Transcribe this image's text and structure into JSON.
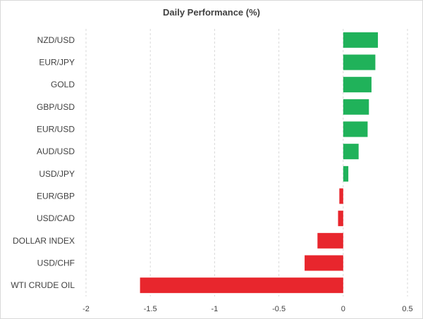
{
  "chart_data": {
    "type": "bar",
    "orientation": "horizontal",
    "title": "Daily Performance (%)",
    "xlabel": "",
    "ylabel": "",
    "xlim": [
      -2,
      0.5
    ],
    "xticks": [
      "-2",
      "-1.5",
      "-1",
      "-0.5",
      "0",
      "0.5"
    ],
    "grid": "vertical dashed",
    "positive_color": "#20b25a",
    "negative_color": "#e8262d",
    "categories": [
      "NZD/USD",
      "EUR/JPY",
      "GOLD",
      "GBP/USD",
      "EUR/USD",
      "AUD/USD",
      "USD/JPY",
      "EUR/GBP",
      "USD/CAD",
      "DOLLAR INDEX",
      "USD/CHF",
      "WTI CRUDE OIL"
    ],
    "values": [
      0.27,
      0.25,
      0.22,
      0.2,
      0.19,
      0.12,
      0.04,
      -0.03,
      -0.04,
      -0.2,
      -0.3,
      -1.58
    ]
  }
}
